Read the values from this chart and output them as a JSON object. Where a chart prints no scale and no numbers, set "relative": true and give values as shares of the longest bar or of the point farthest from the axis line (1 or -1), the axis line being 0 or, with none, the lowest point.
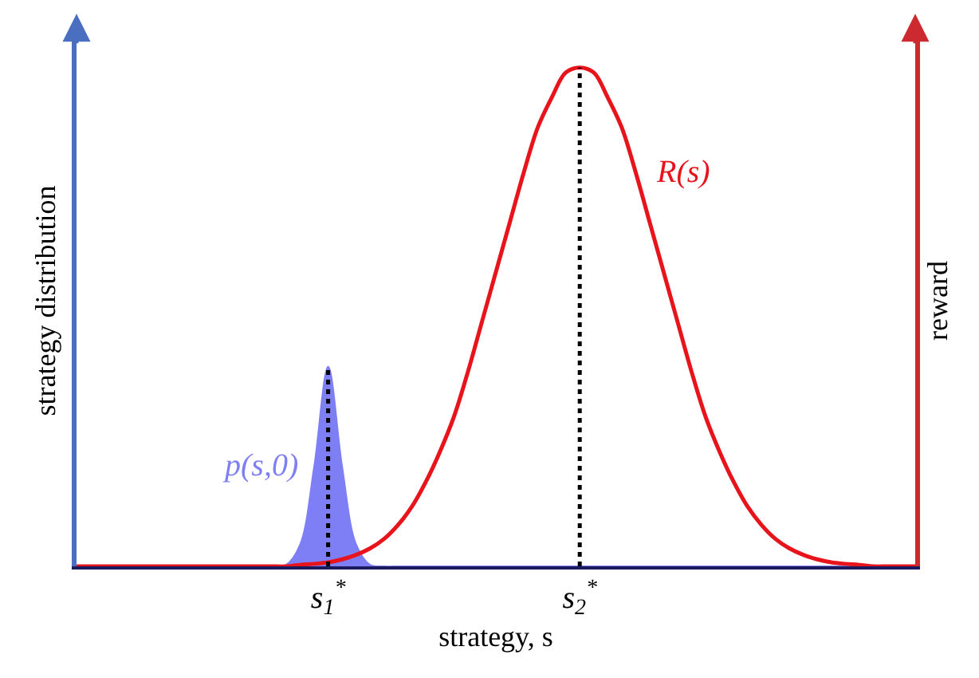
{
  "chart_data": {
    "type": "line",
    "relative": true,
    "xlabel": "strategy, s",
    "ylabel": "strategy distribution",
    "y2label": "reward",
    "categories": [
      null,
      null,
      null,
      null,
      null,
      null,
      null,
      null,
      null,
      null,
      null,
      null,
      null,
      null,
      null,
      null,
      null,
      null,
      "s$_{1}$$^{*}$",
      null,
      null,
      null,
      null,
      null,
      null,
      null,
      null,
      null,
      null,
      null,
      null,
      null,
      null,
      null,
      null,
      null,
      "s$_{2}$$^{*}$",
      null,
      null,
      null,
      null,
      null,
      null,
      null,
      null,
      null,
      null,
      null,
      null,
      null,
      null,
      null,
      null,
      null,
      null,
      null,
      null,
      null,
      null,
      null,
      null
    ],
    "tick_labels": "x",
    "grid": false,
    "legend": false,
    "marker": "none",
    "ref_lines": [
      {
        "axis": "x",
        "value": "s$_{1}$$^{*}$",
        "color": "#000000",
        "line_style": "dotted"
      },
      {
        "axis": "x",
        "value": "s$_{2}$$^{*}$",
        "color": "#000000",
        "line_style": "dotted"
      }
    ],
    "series": [
      {
        "name": "p(s,0)",
        "type": "area",
        "color": "#7f7ff5",
        "values": [
          0,
          0,
          0,
          0,
          0,
          0,
          0,
          0,
          0,
          0,
          0,
          0,
          0,
          0,
          0,
          0.003,
          0.044,
          0.2,
          0.4,
          0.2,
          0.044,
          0.003,
          0,
          0,
          0,
          0,
          0,
          0,
          0,
          0,
          0,
          0,
          0,
          0,
          0,
          0,
          0,
          0,
          0,
          0,
          0,
          0,
          0,
          0,
          0,
          0,
          0,
          0,
          0,
          0,
          0,
          0,
          0,
          0,
          0,
          0,
          0,
          0,
          0,
          0,
          0
        ]
      },
      {
        "name": "R(s)",
        "color": "#e8141c",
        "values": [
          0,
          0,
          0,
          0,
          0,
          0,
          0,
          0,
          0,
          0,
          0,
          0,
          0,
          0,
          0,
          0,
          0.003,
          0.005,
          0.008,
          0.014,
          0.023,
          0.036,
          0.055,
          0.083,
          0.12,
          0.17,
          0.23,
          0.3,
          0.39,
          0.49,
          0.59,
          0.69,
          0.79,
          0.88,
          0.94,
          0.99,
          1,
          0.99,
          0.94,
          0.88,
          0.79,
          0.69,
          0.59,
          0.49,
          0.39,
          0.3,
          0.23,
          0.17,
          0.12,
          0.083,
          0.055,
          0.036,
          0.023,
          0.014,
          0.008,
          0.005,
          0.003,
          0,
          0,
          0,
          0
        ]
      }
    ]
  }
}
